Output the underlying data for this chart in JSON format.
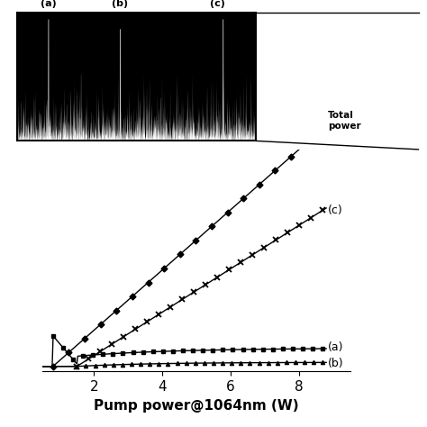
{
  "xlabel": "Pump power@1064nm (W)",
  "xlim": [
    0.5,
    9.5
  ],
  "ylim_main": [
    -0.02,
    0.85
  ],
  "xticks": [
    2,
    4,
    6,
    8
  ],
  "background_color": "#ffffff",
  "total_power_label": "Total\npower",
  "label_c": "(c)",
  "label_a": "(a)",
  "label_b": "(b)",
  "inset_label_a": "(a)",
  "inset_label_b": "(b)",
  "inset_label_c": "(c)"
}
